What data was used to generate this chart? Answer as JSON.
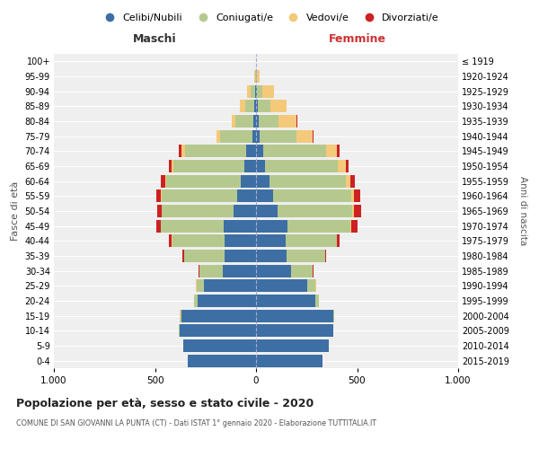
{
  "age_groups": [
    "0-4",
    "5-9",
    "10-14",
    "15-19",
    "20-24",
    "25-29",
    "30-34",
    "35-39",
    "40-44",
    "45-49",
    "50-54",
    "55-59",
    "60-64",
    "65-69",
    "70-74",
    "75-79",
    "80-84",
    "85-89",
    "90-94",
    "95-99",
    "100+"
  ],
  "birth_years": [
    "2015-2019",
    "2010-2014",
    "2005-2009",
    "2000-2004",
    "1995-1999",
    "1990-1994",
    "1985-1989",
    "1980-1984",
    "1975-1979",
    "1970-1974",
    "1965-1969",
    "1960-1964",
    "1955-1959",
    "1950-1954",
    "1945-1949",
    "1940-1944",
    "1935-1939",
    "1930-1934",
    "1925-1929",
    "1920-1924",
    "≤ 1919"
  ],
  "colors": {
    "celibi": "#3d6fa5",
    "coniugati": "#b5c98e",
    "vedovi": "#f5c97a",
    "divorziati": "#cc2222"
  },
  "legend_labels": [
    "Celibi/Nubili",
    "Coniugati/e",
    "Vedovi/e",
    "Divorziati/e"
  ],
  "maschi": {
    "celibi": [
      340,
      360,
      380,
      370,
      290,
      260,
      165,
      155,
      155,
      160,
      110,
      95,
      75,
      60,
      50,
      20,
      12,
      8,
      5,
      1,
      0
    ],
    "coniugati": [
      0,
      0,
      2,
      5,
      15,
      35,
      115,
      200,
      260,
      310,
      355,
      370,
      370,
      350,
      300,
      160,
      90,
      45,
      20,
      2,
      0
    ],
    "vedovi": [
      0,
      0,
      0,
      1,
      2,
      2,
      1,
      1,
      2,
      2,
      3,
      4,
      5,
      10,
      20,
      15,
      18,
      25,
      20,
      5,
      0
    ],
    "divorziati": [
      0,
      0,
      0,
      0,
      0,
      0,
      4,
      8,
      12,
      20,
      20,
      25,
      20,
      10,
      12,
      0,
      0,
      0,
      0,
      0,
      0
    ]
  },
  "femmine": {
    "nubili": [
      330,
      360,
      380,
      380,
      295,
      255,
      175,
      150,
      145,
      155,
      105,
      85,
      65,
      45,
      35,
      18,
      12,
      8,
      5,
      1,
      0
    ],
    "coniugati": [
      0,
      1,
      2,
      5,
      15,
      40,
      105,
      190,
      255,
      310,
      370,
      385,
      380,
      360,
      310,
      180,
      100,
      65,
      25,
      5,
      0
    ],
    "vedovi": [
      0,
      0,
      0,
      1,
      2,
      2,
      2,
      2,
      2,
      4,
      8,
      15,
      20,
      40,
      55,
      80,
      90,
      80,
      60,
      12,
      2
    ],
    "divorziati": [
      0,
      0,
      0,
      0,
      0,
      1,
      2,
      5,
      10,
      35,
      35,
      30,
      25,
      12,
      15,
      5,
      2,
      0,
      0,
      0,
      0
    ]
  },
  "title": "Popolazione per età, sesso e stato civile - 2020",
  "subtitle": "COMUNE DI SAN GIOVANNI LA PUNTA (CT) - Dati ISTAT 1° gennaio 2020 - Elaborazione TUTTITALIA.IT",
  "xlabel_left": "Maschi",
  "xlabel_right": "Femmine",
  "ylabel_left": "Fasce di età",
  "ylabel_right": "Anni di nascita",
  "xlim": 1000,
  "bg_color": "#efefef"
}
